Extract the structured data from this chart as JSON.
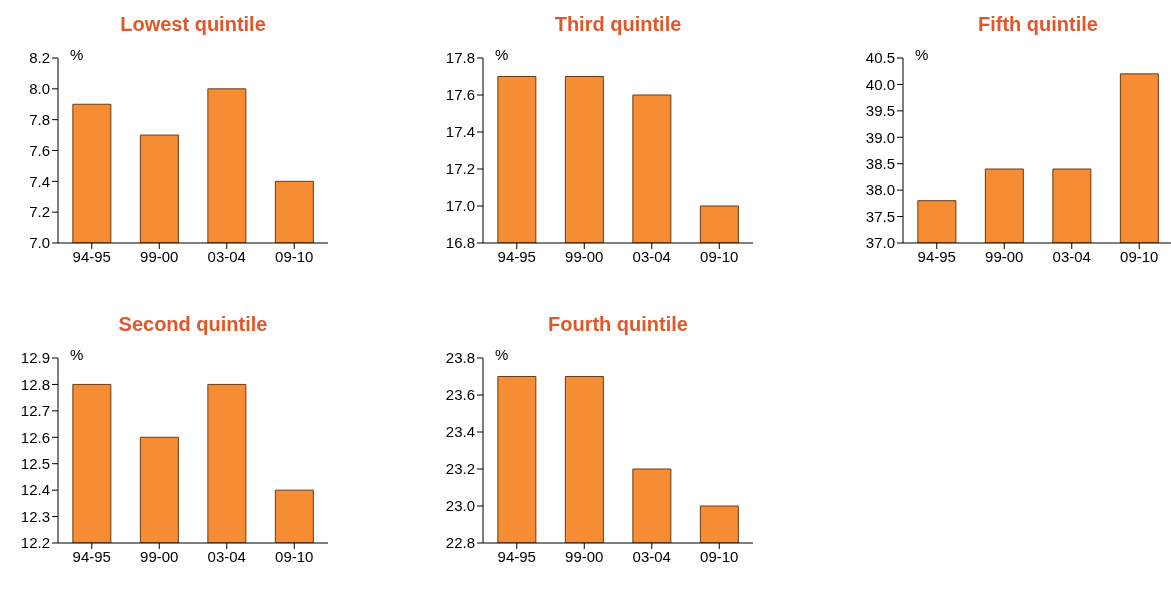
{
  "chart_data": [
    {
      "type": "bar",
      "title": "Lowest quintile",
      "ylabel": "%",
      "categories": [
        "94-95",
        "99-00",
        "03-04",
        "09-10"
      ],
      "values": [
        7.9,
        7.7,
        8.0,
        7.4
      ],
      "color": "#f68c33",
      "ylim": [
        7.0,
        8.2
      ],
      "yticks": [
        {
          "value": 7,
          "label": "7.0"
        },
        7.2,
        7.4,
        7.6,
        7.8,
        {
          "value": 8,
          "label": "8.0"
        },
        8.2
      ]
    },
    {
      "type": "bar",
      "title": "Third quintile",
      "ylabel": "%",
      "categories": [
        "94-95",
        "99-00",
        "03-04",
        "09-10"
      ],
      "values": [
        17.7,
        17.7,
        17.6,
        17.0
      ],
      "color": "#f68c33",
      "ylim": [
        16.8,
        17.8
      ],
      "yticks": [
        16.8,
        {
          "value": 17,
          "label": "17.0"
        },
        17.2,
        17.4,
        17.6,
        17.8
      ]
    },
    {
      "type": "bar",
      "title": "Fifth quintile",
      "ylabel": "%",
      "categories": [
        "94-95",
        "99-00",
        "03-04",
        "09-10"
      ],
      "values": [
        37.8,
        38.4,
        38.4,
        40.2
      ],
      "color": "#f68c33",
      "ylim": [
        37.0,
        40.5
      ],
      "yticks": [
        {
          "value": 37,
          "label": "37.0"
        },
        37.5,
        {
          "value": 38,
          "label": "38.0"
        },
        38.5,
        {
          "value": 39,
          "label": "39.0"
        },
        39.5,
        {
          "value": 40,
          "label": "40.0"
        },
        40.5
      ]
    },
    {
      "type": "bar",
      "title": "Second quintile",
      "ylabel": "%",
      "categories": [
        "94-95",
        "99-00",
        "03-04",
        "09-10"
      ],
      "values": [
        12.8,
        12.6,
        12.8,
        12.4
      ],
      "color": "#f68c33",
      "ylim": [
        12.2,
        12.9
      ],
      "yticks": [
        12.2,
        12.3,
        12.4,
        12.5,
        12.6,
        12.7,
        12.8,
        12.9
      ]
    },
    {
      "type": "bar",
      "title": "Fourth quintile",
      "ylabel": "%",
      "categories": [
        "94-95",
        "99-00",
        "03-04",
        "09-10"
      ],
      "values": [
        23.7,
        23.7,
        23.2,
        23.0
      ],
      "color": "#f68c33",
      "ylim": [
        22.8,
        23.8
      ],
      "yticks": [
        22.8,
        {
          "value": 23,
          "label": "23.0"
        },
        23.2,
        23.4,
        23.6,
        23.8
      ]
    }
  ]
}
